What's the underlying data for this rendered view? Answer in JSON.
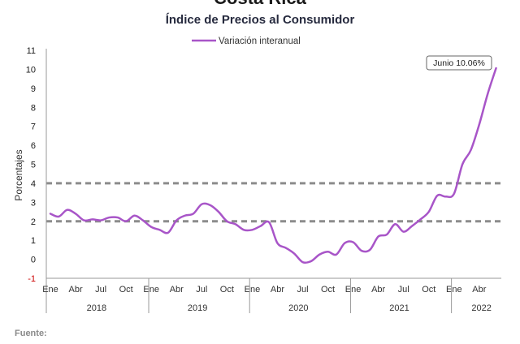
{
  "header": {
    "title": "Costa Rica",
    "subtitle": "Índice de Precios al Consumidor"
  },
  "footer": {
    "source_label": "Fuente:"
  },
  "chart_data": {
    "type": "line",
    "title": "Índice de Precios al Consumidor",
    "ylabel": "Porcentajes",
    "xlabel": "",
    "ylim": [
      -1,
      11
    ],
    "yticks": [
      "-1",
      "0",
      "1",
      "2",
      "3",
      "4",
      "5",
      "6",
      "7",
      "8",
      "9",
      "10",
      "11"
    ],
    "grid": false,
    "legend": {
      "position": "top-center",
      "entries": [
        "Variación interanual"
      ]
    },
    "month_tick_labels": [
      "Ene",
      "Abr",
      "Jul",
      "Oct",
      "Ene",
      "Abr",
      "Jul",
      "Oct",
      "Ene",
      "Abr",
      "Jul",
      "Oct",
      "Ene",
      "Abr",
      "Jul",
      "Oct",
      "Ene",
      "Abr"
    ],
    "year_labels": [
      "2018",
      "2019",
      "2020",
      "2021",
      "2022"
    ],
    "x": [
      "2018-01",
      "2018-02",
      "2018-03",
      "2018-04",
      "2018-05",
      "2018-06",
      "2018-07",
      "2018-08",
      "2018-09",
      "2018-10",
      "2018-11",
      "2018-12",
      "2019-01",
      "2019-02",
      "2019-03",
      "2019-04",
      "2019-05",
      "2019-06",
      "2019-07",
      "2019-08",
      "2019-09",
      "2019-10",
      "2019-11",
      "2019-12",
      "2020-01",
      "2020-02",
      "2020-03",
      "2020-04",
      "2020-05",
      "2020-06",
      "2020-07",
      "2020-08",
      "2020-09",
      "2020-10",
      "2020-11",
      "2020-12",
      "2021-01",
      "2021-02",
      "2021-03",
      "2021-04",
      "2021-05",
      "2021-06",
      "2021-07",
      "2021-08",
      "2021-09",
      "2021-10",
      "2021-11",
      "2021-12",
      "2022-01",
      "2022-02",
      "2022-03",
      "2022-04",
      "2022-05",
      "2022-06"
    ],
    "series": [
      {
        "name": "Variación interanual",
        "color": "#a855c8",
        "values": [
          2.4,
          2.25,
          2.6,
          2.4,
          2.05,
          2.1,
          2.05,
          2.2,
          2.2,
          2.0,
          2.3,
          2.05,
          1.7,
          1.55,
          1.4,
          2.05,
          2.3,
          2.4,
          2.9,
          2.85,
          2.5,
          2.0,
          1.85,
          1.55,
          1.55,
          1.75,
          1.95,
          0.85,
          0.6,
          0.3,
          -0.15,
          -0.1,
          0.25,
          0.4,
          0.25,
          0.85,
          0.9,
          0.45,
          0.5,
          1.2,
          1.3,
          1.85,
          1.45,
          1.75,
          2.1,
          2.5,
          3.35,
          3.3,
          3.45,
          5.0,
          5.75,
          7.1,
          8.7,
          10.06
        ]
      }
    ],
    "reference_lines": [
      {
        "value": 4,
        "style": "dashed",
        "color": "#8c8c8c"
      },
      {
        "value": 2,
        "style": "dashed",
        "color": "#8c8c8c"
      }
    ],
    "annotation": {
      "text": "Junio 10.06%",
      "position": "top-right"
    },
    "y_zero_label_color": "#1a1a1a",
    "y_negative_label_color": "#cc0000"
  }
}
